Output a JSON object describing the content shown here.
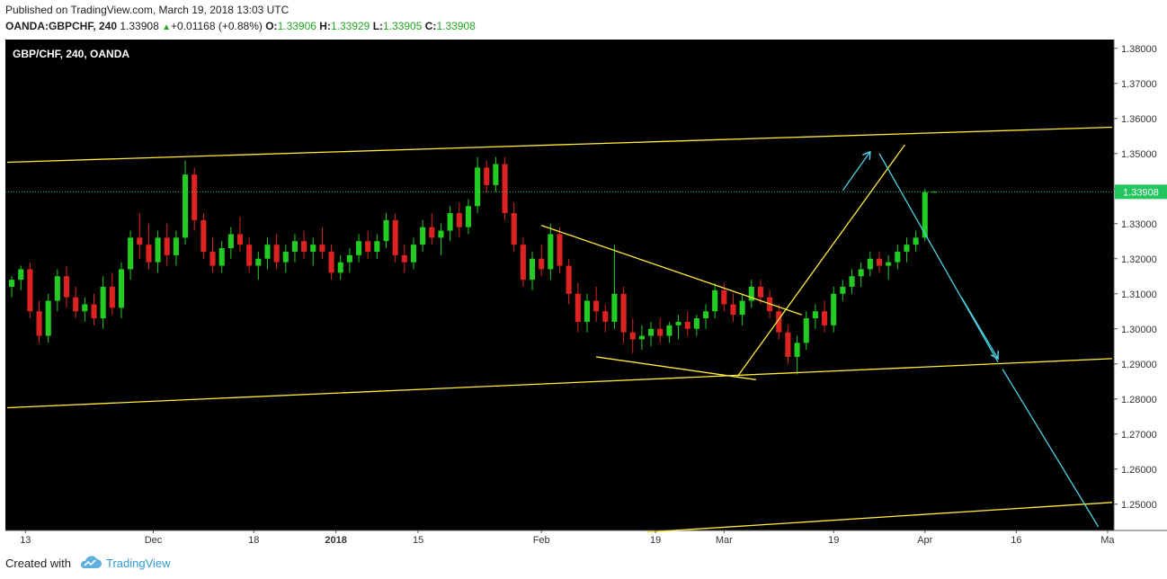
{
  "header": {
    "published": "Published on TradingView.com, March 19, 2018 13:03 UTC",
    "symbol": "OANDA:GBPCHF, 240",
    "last": "1.33908",
    "change_arrow": "▲",
    "change": "+0.01168 (+0.88%)",
    "o_label": "O:",
    "o": "1.33906",
    "h_label": "H:",
    "h": "1.33929",
    "l_label": "L:",
    "l": "1.33905",
    "c_label": "C:",
    "c": "1.33908"
  },
  "chart_data": {
    "type": "candlestick",
    "title": "GBP/CHF, 240, OANDA",
    "ylim": [
      1.2425,
      1.3825
    ],
    "xlim": [
      0,
      121
    ],
    "ytick_labels": [
      "1.38000",
      "1.37000",
      "1.36000",
      "1.35000",
      "1.34000",
      "1.33000",
      "1.32000",
      "1.31000",
      "1.30000",
      "1.29000",
      "1.28000",
      "1.27000",
      "1.26000",
      "1.25000"
    ],
    "xtick_labels": [
      {
        "x": 2,
        "label": "13",
        "bold": false
      },
      {
        "x": 16,
        "label": "Dec",
        "bold": false
      },
      {
        "x": 27,
        "label": "18",
        "bold": false
      },
      {
        "x": 36,
        "label": "2018",
        "bold": true
      },
      {
        "x": 45,
        "label": "15",
        "bold": false
      },
      {
        "x": 58.5,
        "label": "Feb",
        "bold": false
      },
      {
        "x": 71,
        "label": "19",
        "bold": false
      },
      {
        "x": 78.5,
        "label": "Mar",
        "bold": false
      },
      {
        "x": 90.5,
        "label": "19",
        "bold": false
      },
      {
        "x": 100.5,
        "label": "Apr",
        "bold": false
      },
      {
        "x": 110.5,
        "label": "16",
        "bold": false
      },
      {
        "x": 120.5,
        "label": "Ma",
        "bold": false
      }
    ],
    "last_price": 1.33908,
    "last_price_label": "1.33908",
    "candles": [
      [
        1.312,
        1.315,
        1.309,
        1.314
      ],
      [
        1.314,
        1.318,
        1.311,
        1.317
      ],
      [
        1.317,
        1.319,
        1.303,
        1.305
      ],
      [
        1.305,
        1.308,
        1.296,
        1.298
      ],
      [
        1.298,
        1.31,
        1.296,
        1.308
      ],
      [
        1.308,
        1.317,
        1.305,
        1.315
      ],
      [
        1.315,
        1.318,
        1.306,
        1.309
      ],
      [
        1.309,
        1.312,
        1.303,
        1.305
      ],
      [
        1.305,
        1.309,
        1.302,
        1.307
      ],
      [
        1.307,
        1.31,
        1.301,
        1.303
      ],
      [
        1.303,
        1.315,
        1.3,
        1.312
      ],
      [
        1.312,
        1.316,
        1.304,
        1.306
      ],
      [
        1.306,
        1.319,
        1.303,
        1.317
      ],
      [
        1.317,
        1.328,
        1.314,
        1.326
      ],
      [
        1.326,
        1.333,
        1.32,
        1.324
      ],
      [
        1.324,
        1.33,
        1.317,
        1.319
      ],
      [
        1.319,
        1.328,
        1.316,
        1.326
      ],
      [
        1.326,
        1.33,
        1.318,
        1.321
      ],
      [
        1.321,
        1.328,
        1.318,
        1.326
      ],
      [
        1.326,
        1.348,
        1.324,
        1.344
      ],
      [
        1.344,
        1.346,
        1.328,
        1.331
      ],
      [
        1.331,
        1.333,
        1.32,
        1.322
      ],
      [
        1.322,
        1.326,
        1.316,
        1.318
      ],
      [
        1.318,
        1.325,
        1.316,
        1.323
      ],
      [
        1.323,
        1.329,
        1.32,
        1.327
      ],
      [
        1.327,
        1.332,
        1.322,
        1.324
      ],
      [
        1.324,
        1.326,
        1.316,
        1.318
      ],
      [
        1.318,
        1.322,
        1.314,
        1.32
      ],
      [
        1.32,
        1.326,
        1.317,
        1.324
      ],
      [
        1.324,
        1.327,
        1.317,
        1.319
      ],
      [
        1.319,
        1.324,
        1.316,
        1.322
      ],
      [
        1.322,
        1.327,
        1.319,
        1.325
      ],
      [
        1.325,
        1.328,
        1.32,
        1.322
      ],
      [
        1.322,
        1.326,
        1.318,
        1.324
      ],
      [
        1.324,
        1.329,
        1.32,
        1.322
      ],
      [
        1.322,
        1.324,
        1.314,
        1.316
      ],
      [
        1.316,
        1.321,
        1.314,
        1.319
      ],
      [
        1.319,
        1.323,
        1.316,
        1.321
      ],
      [
        1.321,
        1.327,
        1.319,
        1.325
      ],
      [
        1.325,
        1.328,
        1.32,
        1.322
      ],
      [
        1.322,
        1.327,
        1.32,
        1.325
      ],
      [
        1.325,
        1.333,
        1.323,
        1.331
      ],
      [
        1.331,
        1.333,
        1.319,
        1.321
      ],
      [
        1.321,
        1.324,
        1.316,
        1.319
      ],
      [
        1.319,
        1.326,
        1.317,
        1.324
      ],
      [
        1.324,
        1.331,
        1.322,
        1.329
      ],
      [
        1.329,
        1.333,
        1.324,
        1.326
      ],
      [
        1.326,
        1.33,
        1.321,
        1.328
      ],
      [
        1.328,
        1.335,
        1.325,
        1.333
      ],
      [
        1.333,
        1.336,
        1.326,
        1.329
      ],
      [
        1.329,
        1.337,
        1.327,
        1.335
      ],
      [
        1.335,
        1.349,
        1.333,
        1.346
      ],
      [
        1.346,
        1.348,
        1.339,
        1.341
      ],
      [
        1.341,
        1.349,
        1.339,
        1.347
      ],
      [
        1.347,
        1.349,
        1.331,
        1.333
      ],
      [
        1.333,
        1.336,
        1.322,
        1.324
      ],
      [
        1.324,
        1.326,
        1.312,
        1.314
      ],
      [
        1.314,
        1.322,
        1.311,
        1.32
      ],
      [
        1.32,
        1.324,
        1.315,
        1.317
      ],
      [
        1.317,
        1.33,
        1.314,
        1.327
      ],
      [
        1.327,
        1.329,
        1.316,
        1.318
      ],
      [
        1.318,
        1.32,
        1.307,
        1.31
      ],
      [
        1.31,
        1.313,
        1.299,
        1.302
      ],
      [
        1.302,
        1.31,
        1.299,
        1.308
      ],
      [
        1.308,
        1.312,
        1.302,
        1.305
      ],
      [
        1.305,
        1.307,
        1.299,
        1.302
      ],
      [
        1.302,
        1.324,
        1.3,
        1.31
      ],
      [
        1.31,
        1.312,
        1.296,
        1.299
      ],
      [
        1.299,
        1.303,
        1.293,
        1.297
      ],
      [
        1.297,
        1.301,
        1.294,
        1.298
      ],
      [
        1.298,
        1.302,
        1.295,
        1.3
      ],
      [
        1.3,
        1.303,
        1.296,
        1.298
      ],
      [
        1.298,
        1.302,
        1.296,
        1.301
      ],
      [
        1.301,
        1.304,
        1.297,
        1.302
      ],
      [
        1.302,
        1.305,
        1.298,
        1.3
      ],
      [
        1.3,
        1.304,
        1.298,
        1.303
      ],
      [
        1.303,
        1.307,
        1.3,
        1.305
      ],
      [
        1.305,
        1.313,
        1.303,
        1.311
      ],
      [
        1.311,
        1.313,
        1.305,
        1.307
      ],
      [
        1.307,
        1.31,
        1.302,
        1.304
      ],
      [
        1.304,
        1.31,
        1.301,
        1.308
      ],
      [
        1.308,
        1.314,
        1.306,
        1.312
      ],
      [
        1.312,
        1.314,
        1.307,
        1.309
      ],
      [
        1.309,
        1.311,
        1.303,
        1.305
      ],
      [
        1.305,
        1.307,
        1.297,
        1.299
      ],
      [
        1.299,
        1.301,
        1.29,
        1.292
      ],
      [
        1.292,
        1.298,
        1.287,
        1.296
      ],
      [
        1.296,
        1.305,
        1.294,
        1.303
      ],
      [
        1.303,
        1.307,
        1.3,
        1.305
      ],
      [
        1.305,
        1.308,
        1.299,
        1.301
      ],
      [
        1.301,
        1.312,
        1.299,
        1.31
      ],
      [
        1.31,
        1.314,
        1.308,
        1.312
      ],
      [
        1.312,
        1.317,
        1.31,
        1.315
      ],
      [
        1.315,
        1.319,
        1.312,
        1.317
      ],
      [
        1.317,
        1.322,
        1.315,
        1.32
      ],
      [
        1.32,
        1.322,
        1.316,
        1.318
      ],
      [
        1.318,
        1.321,
        1.314,
        1.319
      ],
      [
        1.319,
        1.324,
        1.317,
        1.322
      ],
      [
        1.322,
        1.326,
        1.319,
        1.324
      ],
      [
        1.324,
        1.328,
        1.322,
        1.326
      ],
      [
        1.326,
        1.34,
        1.325,
        1.339
      ],
      [
        1.339,
        1.3393,
        1.339,
        1.33908
      ]
    ],
    "drawings": [
      {
        "kind": "line",
        "color": "#ffeb3b",
        "from": [
          0,
          1.3475
        ],
        "to": [
          121,
          1.3575
        ]
      },
      {
        "kind": "line",
        "color": "#ffeb3b",
        "from": [
          0,
          1.2775
        ],
        "to": [
          121,
          1.2915
        ]
      },
      {
        "kind": "line",
        "color": "#ffeb3b",
        "from": [
          70,
          1.242
        ],
        "to": [
          121,
          1.2505
        ]
      },
      {
        "kind": "line",
        "color": "#ffeb3b",
        "from": [
          58.5,
          1.3295
        ],
        "to": [
          87,
          1.304
        ]
      },
      {
        "kind": "line",
        "color": "#ffeb3b",
        "from": [
          64.5,
          1.292
        ],
        "to": [
          82,
          1.2855
        ]
      },
      {
        "kind": "line",
        "color": "#ffeb3b",
        "from": [
          80,
          1.2865
        ],
        "to": [
          98.3,
          1.3525
        ]
      },
      {
        "kind": "arrow",
        "color": "#4dd0e1",
        "from": [
          91.5,
          1.3395
        ],
        "to": [
          94.5,
          1.3505
        ]
      },
      {
        "kind": "line",
        "color": "#4dd0e1",
        "from": [
          95.5,
          1.35
        ],
        "to": [
          108.5,
          1.2905
        ]
      },
      {
        "kind": "arrow",
        "color": "#4dd0e1",
        "from": [
          104.5,
          1.309
        ],
        "to": [
          108.5,
          1.2915
        ]
      },
      {
        "kind": "line",
        "color": "#4dd0e1",
        "from": [
          109,
          1.2885
        ],
        "to": [
          119.5,
          1.2435
        ]
      }
    ]
  },
  "footer": {
    "created_with": "Created with",
    "brand": "TradingView"
  }
}
